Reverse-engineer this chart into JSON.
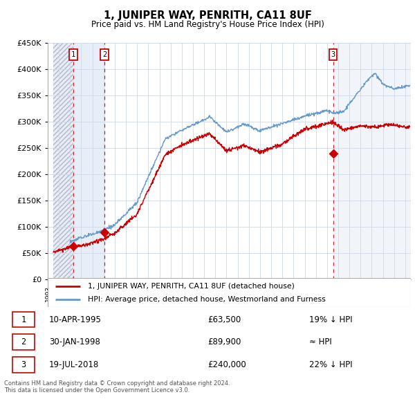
{
  "title": "1, JUNIPER WAY, PENRITH, CA11 8UF",
  "subtitle": "Price paid vs. HM Land Registry's House Price Index (HPI)",
  "legend_line1": "1, JUNIPER WAY, PENRITH, CA11 8UF (detached house)",
  "legend_line2": "HPI: Average price, detached house, Westmorland and Furness",
  "sale_labels": [
    "1",
    "2",
    "3"
  ],
  "sale_notes": [
    "19% ↓ HPI",
    "≈ HPI",
    "22% ↓ HPI"
  ],
  "table_dates": [
    "10-APR-1995",
    "30-JAN-1998",
    "19-JUL-2018"
  ],
  "table_prices": [
    "£63,500",
    "£89,900",
    "£240,000"
  ],
  "red_line_color": "#cc0000",
  "blue_line_color": "#6699cc",
  "dashed_color": "#cc0000",
  "footer": "Contains HM Land Registry data © Crown copyright and database right 2024.\nThis data is licensed under the Open Government Licence v3.0.",
  "ylim": [
    0,
    450000
  ],
  "yticks": [
    0,
    50000,
    100000,
    150000,
    200000,
    250000,
    300000,
    350000,
    400000,
    450000
  ],
  "ytick_labels": [
    "£0",
    "£50K",
    "£100K",
    "£150K",
    "£200K",
    "£250K",
    "£300K",
    "£350K",
    "£400K",
    "£450K"
  ],
  "sale1_year": 1995.278,
  "sale2_year": 1998.083,
  "sale3_year": 2018.542,
  "sale1_price": 63500,
  "sale2_price": 89900,
  "sale3_price": 240000,
  "xmin": 1993.5,
  "xmax": 2025.5,
  "chart_bg": "#ffffff",
  "grid_color": "#d0d8e8",
  "hatch_region_color": "#e8ecf4",
  "blue_shade_color": "#dce8f4"
}
